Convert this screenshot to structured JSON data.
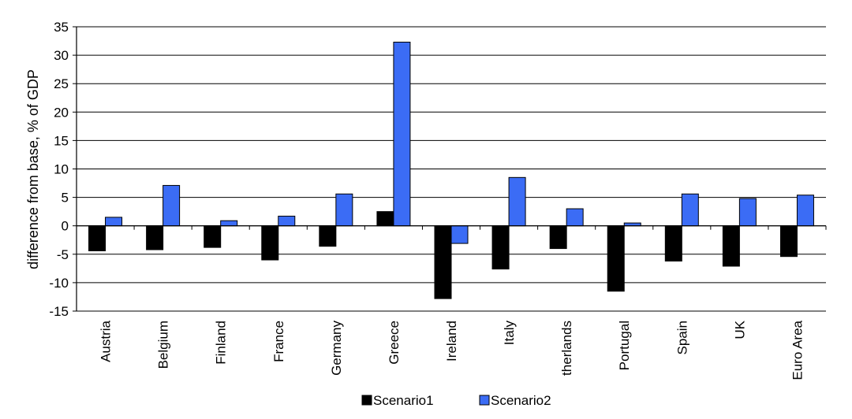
{
  "chart_data": {
    "type": "bar",
    "title": "",
    "xlabel": "",
    "ylabel": "difference from base, % of GDP",
    "ylim": [
      -15,
      35
    ],
    "yticks": [
      35,
      30,
      25,
      20,
      15,
      10,
      5,
      0,
      -5,
      -10,
      -15
    ],
    "grid": true,
    "legend_position": "bottom",
    "categories": [
      "Austria",
      "Belgium",
      "Finland",
      "France",
      "Germany",
      "Greece",
      "Ireland",
      "Italy",
      "therlands",
      "Portugal",
      "Spain",
      "UK",
      "Euro Area"
    ],
    "series": [
      {
        "name": "Scenario1",
        "color": "#000000",
        "values": [
          -4.4,
          -4.2,
          -3.8,
          -6.0,
          -3.6,
          2.5,
          -12.8,
          -7.6,
          -4.0,
          -11.5,
          -6.2,
          -7.1,
          -5.4
        ]
      },
      {
        "name": "Scenario2",
        "color": "#3b6cf5",
        "values": [
          1.5,
          7.1,
          0.9,
          1.7,
          5.6,
          32.3,
          -3.1,
          8.5,
          3.0,
          0.5,
          5.6,
          4.8,
          5.4
        ]
      }
    ]
  }
}
